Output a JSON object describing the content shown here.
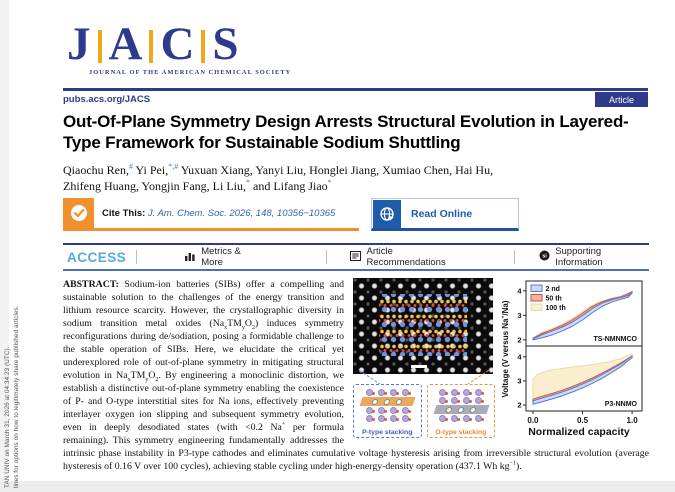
{
  "header": {
    "logo": {
      "l1": "J",
      "l2": "A",
      "l3": "C",
      "l4": "S",
      "tagline": "JOURNAL OF THE AMERICAN CHEMICAL SOCIETY"
    },
    "site_url": "pubs.acs.org/JACS",
    "badge": "Article"
  },
  "sidebar_note": {
    "line1": "TAN UNIV on March 31, 2026 at 04:34:23 (UTC).",
    "line2": "lines for options on how to legitimately share published articles."
  },
  "article": {
    "title": "Out-Of-Plane Symmetry Design Arrests Structural Evolution in Layered-Type Framework for Sustainable Sodium Shuttling",
    "authors_line1": "Qiaochu Ren,^#^ Yi Pei,^*,#^ Yuxuan Xiang, Yanyi Liu, Honglei Jiang, Xumiao Chen, Hai Hu,",
    "authors_line2": "Zhifeng Huang, Yongjin Fang, Li Liu,^*^ and Lifang Jiao^*^"
  },
  "cite": {
    "label": "Cite This:",
    "citation": "J. Am. Chem. Soc. 2026, 148, 10356−10365",
    "read_online": "Read Online"
  },
  "access_bar": {
    "access_label": "ACCESS",
    "metrics": "Metrics & More",
    "recommendations": "Article Recommendations",
    "supporting": "Supporting Information"
  },
  "abstract": {
    "label": "ABSTRACT:",
    "text": "Sodium-ion batteries (SIBs) offer a compelling and sustainable solution to the challenges of the energy transition and lithium resource scarcity. However, the crystallographic diversity in sodium transition metal oxides (Na~x~TM~y~O~2~) induces symmetry reconfigurations during de/sodiation, posing a formidable challenge to the stable operation of SIBs. Here, we elucidate the critical yet underexplored role of out-of-plane symmetry in mitigating structural evolution in Na~x~TM~y~O~2~. By engineering a monoclinic distortion, we establish a distinctive out-of-plane symmetry enabling the coexistence of P- and O-type interstitial sites for Na ions, effectively preventing interlayer oxygen ion slipping and subsequent symmetry evolution, even in deeply desodiated states (with <0.2 Na^+^ per formula remaining). This symmetry engineering fundamentally addresses the intrinsic phase instability in P3-type cathodes and eliminates cumulative voltage hysteresis arising from irreversible structural evolution (average hysteresis of 0.16 V over 100 cycles), achieving stable cycling under high-energy-density operation (437.1 Wh kg^−1^)."
  },
  "graphic": {
    "p_stacking_label": "P-type stacking",
    "o_stacking_label": "O-type stacking"
  },
  "colors": {
    "navy": "#2e3a8c",
    "gold": "#f2a71b",
    "acs_blue": "#58a7dd",
    "cite_orange": "#f0912d",
    "read_blue": "#1d5cab",
    "series_2nd": "#5b79c9",
    "series_50th": "#cf5240",
    "series_100th": "#ead9a9"
  },
  "chart_data": {
    "type": "area",
    "title": "",
    "xlabel": "Normalized capacity",
    "ylabel": "Voltage (V versus Na^+^/Na)",
    "xlim": [
      -0.07,
      1.1
    ],
    "x_ticks": [
      0.0,
      0.5,
      1.0
    ],
    "grid": false,
    "legend_position": "top-left",
    "legend": [
      {
        "label": "2 nd",
        "fill": "#cdd9f4",
        "stroke": "#5b79c9"
      },
      {
        "label": "50 th",
        "fill": "#f3b3a5",
        "stroke": "#cf5240"
      },
      {
        "label": "100 th",
        "fill": "#f9efd0",
        "stroke": "#ead9a9"
      }
    ],
    "panels": [
      {
        "label": "TS-NMNMCO",
        "ylim": [
          1.75,
          4.4
        ],
        "y_ticks": [
          2,
          3,
          4
        ],
        "bands": [
          {
            "name": "2 nd",
            "fill": "#cdd9f4",
            "stroke": "#5b79c9",
            "upper": [
              [
                0,
                2.04
              ],
              [
                0.1,
                2.22
              ],
              [
                0.2,
                2.37
              ],
              [
                0.3,
                2.53
              ],
              [
                0.4,
                2.73
              ],
              [
                0.5,
                2.99
              ],
              [
                0.6,
                3.28
              ],
              [
                0.7,
                3.5
              ],
              [
                0.8,
                3.64
              ],
              [
                0.9,
                3.74
              ],
              [
                0.96,
                3.8
              ],
              [
                1.0,
                3.98
              ]
            ],
            "lower": [
              [
                0,
                2.0
              ],
              [
                0.1,
                2.09
              ],
              [
                0.2,
                2.21
              ],
              [
                0.3,
                2.37
              ],
              [
                0.4,
                2.56
              ],
              [
                0.5,
                2.81
              ],
              [
                0.6,
                3.11
              ],
              [
                0.7,
                3.37
              ],
              [
                0.8,
                3.55
              ],
              [
                0.9,
                3.67
              ],
              [
                0.96,
                3.73
              ],
              [
                1.0,
                3.93
              ]
            ]
          },
          {
            "name": "50 th",
            "fill": "#f3b3a5",
            "stroke": "#cf5240",
            "upper": [
              [
                0,
                2.06
              ],
              [
                0.09,
                2.26
              ],
              [
                0.19,
                2.41
              ],
              [
                0.29,
                2.58
              ],
              [
                0.39,
                2.79
              ],
              [
                0.49,
                3.06
              ],
              [
                0.59,
                3.34
              ],
              [
                0.69,
                3.54
              ],
              [
                0.79,
                3.67
              ],
              [
                0.89,
                3.76
              ],
              [
                1.0,
                3.96
              ]
            ],
            "lower": [
              [
                0,
                2.02
              ],
              [
                0.09,
                2.13
              ],
              [
                0.19,
                2.26
              ],
              [
                0.29,
                2.43
              ],
              [
                0.39,
                2.63
              ],
              [
                0.49,
                2.89
              ],
              [
                0.59,
                3.18
              ],
              [
                0.69,
                3.43
              ],
              [
                0.79,
                3.59
              ],
              [
                0.89,
                3.7
              ],
              [
                1.0,
                3.91
              ]
            ]
          },
          {
            "name": "100 th",
            "fill": "#f9efd0",
            "stroke": "#ead9a9",
            "upper": [
              [
                0,
                2.08
              ],
              [
                0.08,
                2.29
              ],
              [
                0.18,
                2.44
              ],
              [
                0.28,
                2.61
              ],
              [
                0.38,
                2.83
              ],
              [
                0.48,
                3.1
              ],
              [
                0.58,
                3.37
              ],
              [
                0.68,
                3.56
              ],
              [
                0.78,
                3.69
              ],
              [
                0.88,
                3.78
              ],
              [
                1.0,
                3.94
              ]
            ],
            "lower": [
              [
                0,
                2.0
              ],
              [
                0.08,
                2.11
              ],
              [
                0.18,
                2.23
              ],
              [
                0.28,
                2.41
              ],
              [
                0.38,
                2.61
              ],
              [
                0.48,
                2.86
              ],
              [
                0.58,
                3.15
              ],
              [
                0.68,
                3.41
              ],
              [
                0.78,
                3.57
              ],
              [
                0.88,
                3.68
              ],
              [
                1.0,
                3.89
              ]
            ]
          }
        ]
      },
      {
        "label": "P3-NNMO",
        "ylim": [
          1.75,
          4.45
        ],
        "y_ticks": [
          2,
          3,
          4
        ],
        "bands": [
          {
            "name": "2 nd",
            "fill": "#cdd9f4",
            "stroke": "#5b79c9",
            "upper": [
              [
                0,
                2.17
              ],
              [
                0.1,
                2.3
              ],
              [
                0.2,
                2.42
              ],
              [
                0.3,
                2.55
              ],
              [
                0.4,
                2.7
              ],
              [
                0.5,
                2.87
              ],
              [
                0.6,
                3.05
              ],
              [
                0.7,
                3.27
              ],
              [
                0.8,
                3.5
              ],
              [
                0.9,
                3.74
              ],
              [
                1.0,
                4.04
              ]
            ],
            "lower": [
              [
                0,
                2.03
              ],
              [
                0.1,
                2.14
              ],
              [
                0.2,
                2.26
              ],
              [
                0.3,
                2.39
              ],
              [
                0.4,
                2.54
              ],
              [
                0.5,
                2.71
              ],
              [
                0.6,
                2.9
              ],
              [
                0.7,
                3.12
              ],
              [
                0.8,
                3.37
              ],
              [
                0.9,
                3.64
              ],
              [
                1.0,
                3.97
              ]
            ]
          },
          {
            "name": "50 th",
            "fill": "#f3b3a5",
            "stroke": "#cf5240",
            "upper": [
              [
                0,
                2.24
              ],
              [
                0.1,
                2.37
              ],
              [
                0.2,
                2.49
              ],
              [
                0.3,
                2.62
              ],
              [
                0.4,
                2.77
              ],
              [
                0.5,
                2.94
              ],
              [
                0.6,
                3.12
              ],
              [
                0.7,
                3.33
              ],
              [
                0.8,
                3.55
              ],
              [
                0.9,
                3.78
              ],
              [
                1.0,
                4.04
              ]
            ],
            "lower": [
              [
                0,
                2.09
              ],
              [
                0.1,
                2.2
              ],
              [
                0.2,
                2.32
              ],
              [
                0.3,
                2.45
              ],
              [
                0.4,
                2.6
              ],
              [
                0.5,
                2.77
              ],
              [
                0.6,
                2.96
              ],
              [
                0.7,
                3.18
              ],
              [
                0.8,
                3.42
              ],
              [
                0.9,
                3.68
              ],
              [
                1.0,
                3.99
              ]
            ]
          },
          {
            "name": "100 th",
            "fill": "#f9efd0",
            "stroke": "#ead9a9",
            "upper": [
              [
                0,
                3.08
              ],
              [
                0.05,
                3.28
              ],
              [
                0.15,
                3.42
              ],
              [
                0.3,
                3.52
              ],
              [
                0.45,
                3.6
              ],
              [
                0.6,
                3.68
              ],
              [
                0.75,
                3.78
              ],
              [
                0.88,
                3.92
              ],
              [
                1.0,
                4.12
              ]
            ],
            "lower": [
              [
                0,
                2.12
              ],
              [
                0.1,
                2.24
              ],
              [
                0.2,
                2.34
              ],
              [
                0.3,
                2.45
              ],
              [
                0.4,
                2.58
              ],
              [
                0.5,
                2.72
              ],
              [
                0.6,
                2.9
              ],
              [
                0.7,
                3.1
              ],
              [
                0.8,
                3.34
              ],
              [
                0.9,
                3.6
              ],
              [
                1.0,
                4.02
              ]
            ]
          }
        ]
      }
    ]
  }
}
